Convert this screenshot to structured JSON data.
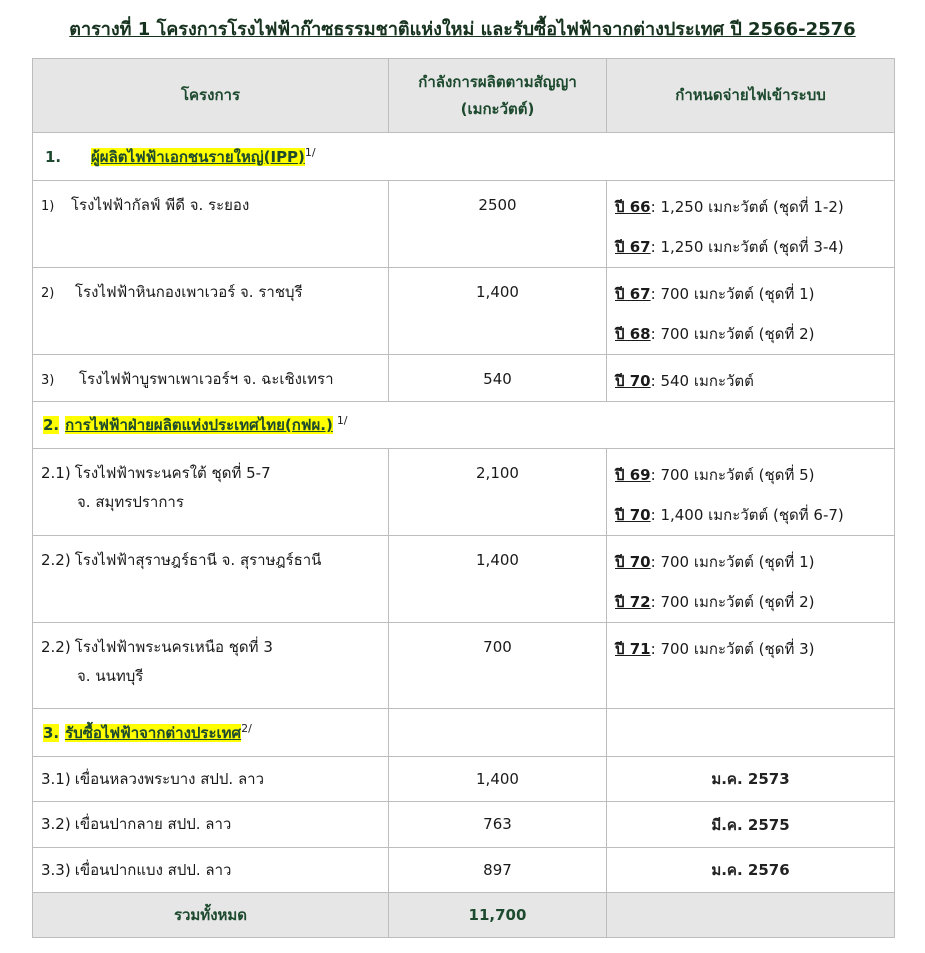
{
  "title": "ตารางที่ 1 โครงการโรงไฟฟ้าก๊าซธรรมชาติแห่งใหม่ และรับซื้อไฟฟ้าจากต่างประเทศ ปี 2566-2576",
  "table": {
    "header": [
      "โครงการ",
      [
        "กำลังการผลิตตามสัญญา",
        "(เมกะวัตต์)"
      ],
      "กำหนดจ่ายไฟเข้าระบบ"
    ],
    "sections": [
      {
        "number": "1.",
        "name": "ผู้ผลิตไฟฟ้าเอกชนรายใหญ่(IPP)",
        "note": "1/",
        "rows": [
          {
            "number": "1)",
            "name": [
              "โรงไฟฟ้ากัลฟ์ พีดี จ. ระยอง"
            ],
            "capacity": "2500",
            "schedule": [
              {
                "year": "ปี 66",
                "detail": ": 1,250 เมกะวัตต์ (ชุดที่ 1-2)"
              },
              {
                "year": "ปี 67",
                "detail": ": 1,250 เมกะวัตต์ (ชุดที่ 3-4)"
              }
            ]
          },
          {
            "number": "2)",
            "name": [
              "โรงไฟฟ้าหินกองเพาเวอร์ จ. ราชบุรี"
            ],
            "capacity": "1,400",
            "schedule": [
              {
                "year": "ปี 67",
                "detail": ": 700 เมกะวัตต์ (ชุดที่ 1)"
              },
              {
                "year": "ปี 68",
                "detail": ": 700 เมกะวัตต์ (ชุดที่ 2)"
              }
            ]
          },
          {
            "number": "3)",
            "name": [
              "โรงไฟฟ้าบูรพาเพาเวอร์ฯ จ. ฉะเชิงเทรา"
            ],
            "capacity": "540",
            "schedule": [
              {
                "year": "ปี 70",
                "detail": ": 540 เมกะวัตต์"
              }
            ]
          }
        ]
      },
      {
        "number": "2.",
        "name": "การไฟฟ้าฝ่ายผลิตแห่งประเทศไทย(กฟผ.)",
        "note": "1/",
        "rows": [
          {
            "number": "2.1)",
            "name": [
              "โรงไฟฟ้าพระนครใต้ ชุดที่ 5-7",
              "จ. สมุทรปราการ"
            ],
            "capacity": "2,100",
            "schedule": [
              {
                "year": "ปี 69",
                "detail": ": 700 เมกะวัตต์ (ชุดที่ 5)"
              },
              {
                "year": "ปี 70",
                "detail": ": 1,400 เมกะวัตต์ (ชุดที่ 6-7)"
              }
            ]
          },
          {
            "number": "2.2)",
            "name": [
              "โรงไฟฟ้าสุราษฎร์ธานี จ. สุราษฎร์ธานี"
            ],
            "capacity": "1,400",
            "schedule": [
              {
                "year": "ปี 70",
                "detail": ": 700 เมกะวัตต์ (ชุดที่ 1)"
              },
              {
                "year": "ปี 72",
                "detail": ": 700 เมกะวัตต์ (ชุดที่ 2)"
              }
            ]
          },
          {
            "number": "2.2)",
            "name": [
              "โรงไฟฟ้าพระนครเหนือ ชุดที่ 3",
              "จ. นนทบุรี"
            ],
            "capacity": "700",
            "schedule": [
              {
                "year": "ปี 71",
                "detail": ": 700 เมกะวัตต์ (ชุดที่ 3)"
              }
            ]
          }
        ]
      },
      {
        "number": "3.",
        "name": "รับซื้อไฟฟ้าจากต่างประเทศ",
        "note": "2/",
        "rows": [
          {
            "number": "3.1)",
            "name": [
              "เขื่อนหลวงพระบาง สปป. ลาว"
            ],
            "capacity": "1,400",
            "date": "ม.ค. 2573"
          },
          {
            "number": "3.2)",
            "name": [
              "เขื่อนปากลาย สปป. ลาว"
            ],
            "capacity": "763",
            "date": "มี.ค. 2575"
          },
          {
            "number": "3.3)",
            "name": [
              "เขื่อนปากแบง สปป. ลาว"
            ],
            "capacity": "897",
            "date": "ม.ค. 2576"
          }
        ]
      }
    ],
    "total": {
      "label": "รวมทั้งหมด",
      "capacity": "11,700"
    }
  }
}
